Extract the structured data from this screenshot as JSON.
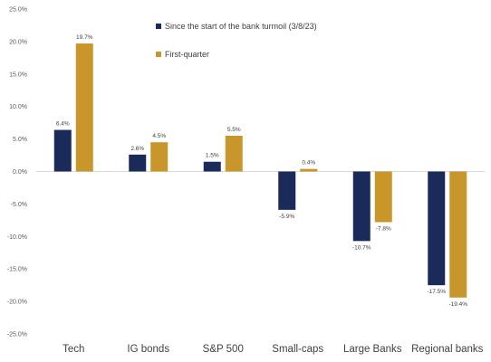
{
  "chart_data": {
    "type": "bar",
    "title": "",
    "xlabel": "",
    "ylabel": "",
    "categories": [
      "Tech",
      "IG bonds",
      "S&P 500",
      "Small-caps",
      "Large Banks",
      "Regional banks"
    ],
    "series": [
      {
        "name": "Since the start of the bank turmoil (3/8/23)",
        "color": "#1a2b5a",
        "values": [
          6.4,
          2.6,
          1.5,
          -5.9,
          -10.7,
          -17.5
        ],
        "labels": [
          "6.4%",
          "2.6%",
          "1.5%",
          "-5.9%",
          "-10.7%",
          "-17.5%"
        ]
      },
      {
        "name": "First-quarter",
        "color": "#c9962b",
        "values": [
          19.7,
          4.5,
          5.5,
          0.4,
          -7.8,
          -19.4
        ],
        "labels": [
          "19.7%",
          "4.5%",
          "5.5%",
          "0.4%",
          "-7.8%",
          "-19.4%"
        ]
      }
    ],
    "ylim": [
      -25,
      25
    ],
    "yticks": [
      25,
      20,
      15,
      10,
      5,
      0,
      -5,
      -10,
      -15,
      -20,
      -25
    ],
    "ytick_labels": [
      "25.0%",
      "20.0%",
      "15.0%",
      "10.0%",
      "5.0%",
      "0.0%",
      "-5.0%",
      "-10.0%",
      "-15.0%",
      "-20.0%",
      "-25.0%"
    ],
    "grid": false,
    "legend_position": "top-center"
  }
}
